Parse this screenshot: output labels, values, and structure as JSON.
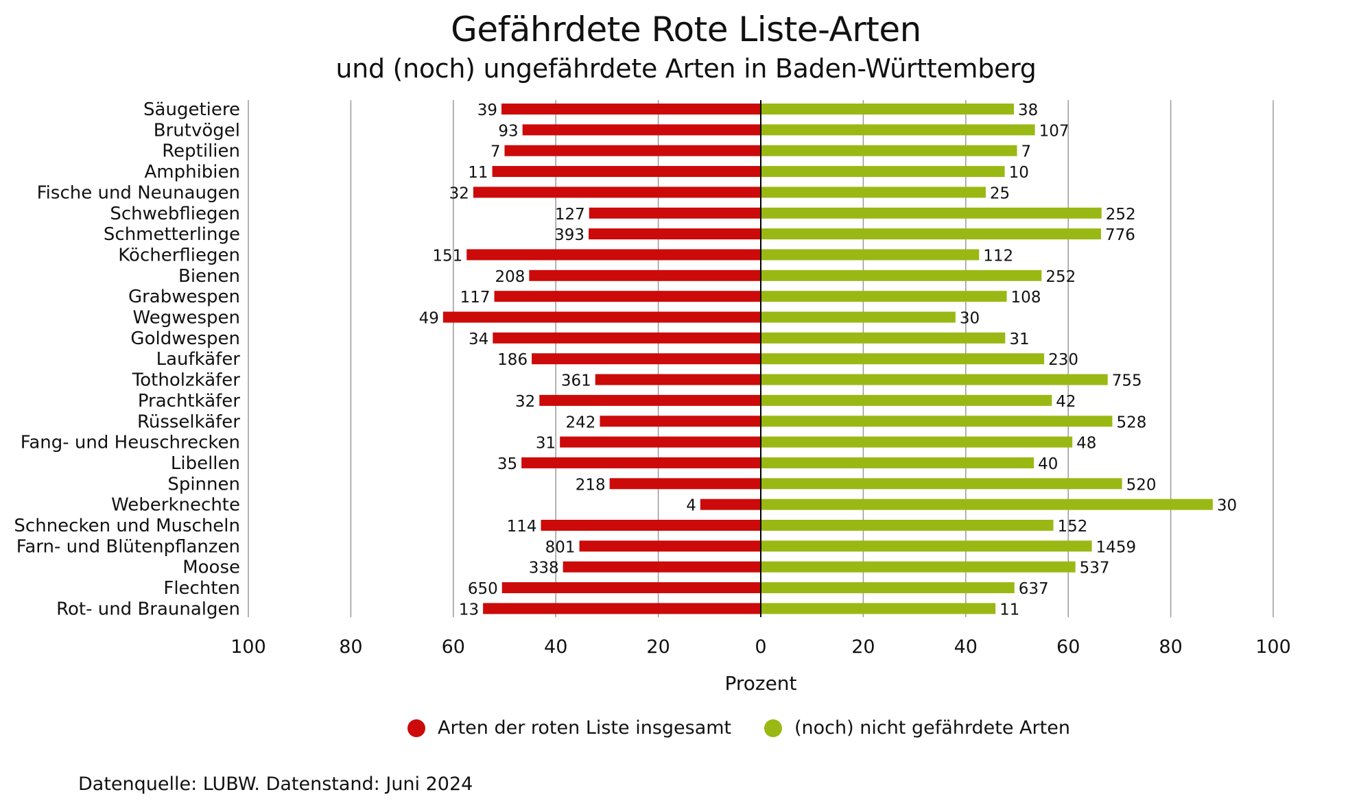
{
  "header": {
    "title": "Gefährdete Rote Liste-Arten",
    "subtitle": "und (noch) ungefährdete Arten in Baden-Württemberg"
  },
  "colors": {
    "red": "#cc0a0a",
    "green": "#9ab814",
    "grid": "#999999",
    "axis": "#000000"
  },
  "legend": {
    "red_label": "Arten der roten Liste insgesamt",
    "green_label": "(noch) nicht gefährdete Arten"
  },
  "footer": {
    "source": "Datenquelle: LUBW. Datenstand: Juni 2024"
  },
  "chart_data": {
    "type": "bar",
    "orientation": "horizontal-diverging",
    "xlabel": "Prozent",
    "xlim": [
      -100,
      100
    ],
    "xticks": [
      -100,
      -80,
      -60,
      -40,
      -20,
      0,
      20,
      40,
      60,
      80,
      100
    ],
    "xtick_labels": [
      "100",
      "80",
      "60",
      "40",
      "20",
      "0",
      "20",
      "40",
      "60",
      "80",
      "100"
    ],
    "grid": true,
    "legend_position": "bottom",
    "categories": [
      "Säugetiere",
      "Brutvögel",
      "Reptilien",
      "Amphibien",
      "Fische und Neunaugen",
      "Schwebfliegen",
      "Schmetterlinge",
      "Köcherfliegen",
      "Bienen",
      "Grabwespen",
      "Wegwespen",
      "Goldwespen",
      "Laufkäfer",
      "Totholzkäfer",
      "Prachtkäfer",
      "Rüsselkäfer",
      "Fang- und Heuschrecken",
      "Libellen",
      "Spinnen",
      "Weberknechte",
      "Schnecken und Muscheln",
      "Farn- und Blütenpflanzen",
      "Moose",
      "Flechten",
      "Rot- und Braunalgen"
    ],
    "series": [
      {
        "name": "Arten der roten Liste insgesamt",
        "color": "#cc0a0a",
        "percent": [
          50.6,
          46.5,
          50.0,
          52.4,
          56.1,
          33.5,
          33.6,
          57.4,
          45.2,
          52.0,
          62.0,
          52.3,
          44.7,
          32.3,
          43.2,
          31.4,
          39.2,
          46.7,
          29.5,
          11.8,
          42.9,
          35.4,
          38.6,
          50.5,
          54.2
        ],
        "counts": [
          "39",
          "93",
          "7",
          "11",
          "32",
          "127",
          "393",
          "151",
          "208",
          "117",
          "49",
          "34",
          "186",
          "361",
          "32",
          "242",
          "31",
          "35",
          "218",
          "4",
          "114",
          "801",
          "338",
          "650",
          "13"
        ]
      },
      {
        "name": "(noch) nicht gefährdete Arten",
        "color": "#9ab814",
        "percent": [
          49.4,
          53.5,
          50.0,
          47.6,
          43.9,
          66.5,
          66.4,
          42.6,
          54.8,
          48.0,
          38.0,
          47.7,
          55.3,
          67.7,
          56.8,
          68.6,
          60.8,
          53.3,
          70.5,
          88.2,
          57.1,
          64.6,
          61.4,
          49.5,
          45.8
        ],
        "counts": [
          "38",
          "107",
          "7",
          "10",
          "25",
          "252",
          "776",
          "112",
          "252",
          "108",
          "30",
          "31",
          "230",
          "755",
          "42",
          "528",
          "48",
          "40",
          "520",
          "30",
          "152",
          "1459",
          "537",
          "637",
          "11"
        ]
      }
    ]
  }
}
